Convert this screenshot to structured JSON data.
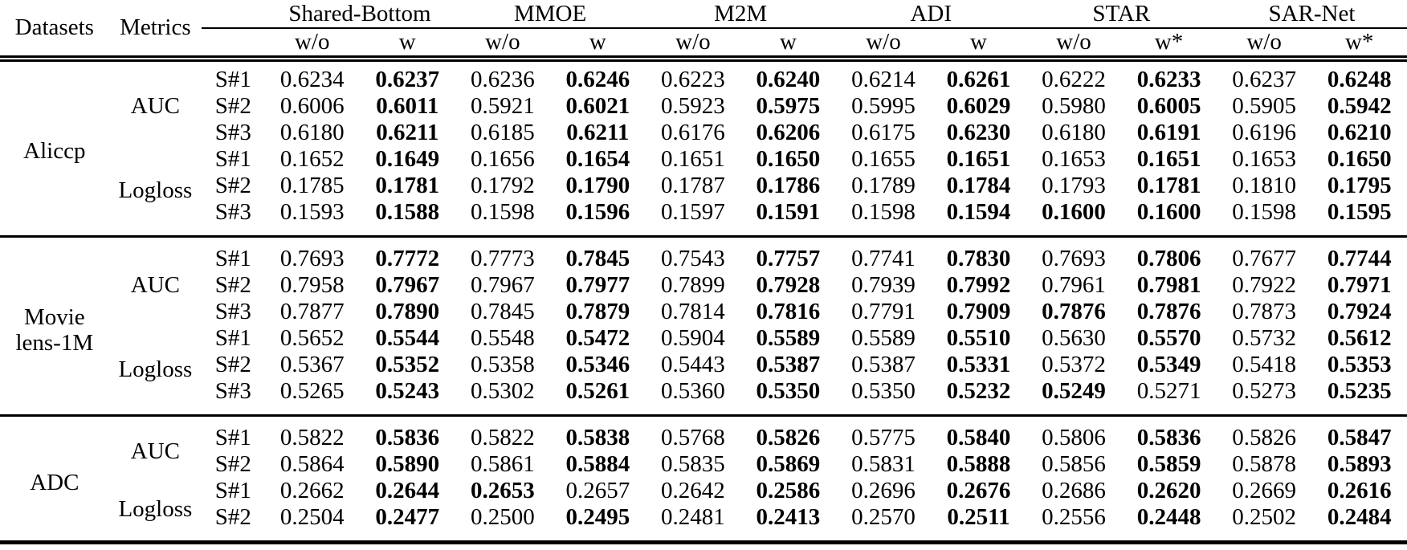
{
  "table": {
    "header": {
      "datasets_label": "Datasets",
      "metrics_label": "Metrics",
      "methods": [
        {
          "name": "Shared-Bottom",
          "cols": [
            "w/o",
            "w"
          ]
        },
        {
          "name": "MMOE",
          "cols": [
            "w/o",
            "w"
          ]
        },
        {
          "name": "M2M",
          "cols": [
            "w/o",
            "w"
          ]
        },
        {
          "name": "ADI",
          "cols": [
            "w/o",
            "w"
          ]
        },
        {
          "name": "STAR",
          "cols": [
            "w/o",
            "w*"
          ]
        },
        {
          "name": "SAR-Net",
          "cols": [
            "w/o",
            "w*"
          ]
        }
      ]
    },
    "sections": [
      {
        "dataset": "Aliccp",
        "dataset_lines": [
          "Aliccp"
        ],
        "groups": [
          {
            "metric": "AUC",
            "rows": [
              {
                "scenario": "S#1",
                "values": [
                  "0.6234",
                  "0.6237",
                  "0.6236",
                  "0.6246",
                  "0.6223",
                  "0.6240",
                  "0.6214",
                  "0.6261",
                  "0.6222",
                  "0.6233",
                  "0.6237",
                  "0.6248"
                ],
                "bold": [
                  0,
                  1,
                  0,
                  1,
                  0,
                  1,
                  0,
                  1,
                  0,
                  1,
                  0,
                  1
                ]
              },
              {
                "scenario": "S#2",
                "values": [
                  "0.6006",
                  "0.6011",
                  "0.5921",
                  "0.6021",
                  "0.5923",
                  "0.5975",
                  "0.5995",
                  "0.6029",
                  "0.5980",
                  "0.6005",
                  "0.5905",
                  "0.5942"
                ],
                "bold": [
                  0,
                  1,
                  0,
                  1,
                  0,
                  1,
                  0,
                  1,
                  0,
                  1,
                  0,
                  1
                ]
              },
              {
                "scenario": "S#3",
                "values": [
                  "0.6180",
                  "0.6211",
                  "0.6185",
                  "0.6211",
                  "0.6176",
                  "0.6206",
                  "0.6175",
                  "0.6230",
                  "0.6180",
                  "0.6191",
                  "0.6196",
                  "0.6210"
                ],
                "bold": [
                  0,
                  1,
                  0,
                  1,
                  0,
                  1,
                  0,
                  1,
                  0,
                  1,
                  0,
                  1
                ]
              }
            ]
          },
          {
            "metric": "Logloss",
            "rows": [
              {
                "scenario": "S#1",
                "values": [
                  "0.1652",
                  "0.1649",
                  "0.1656",
                  "0.1654",
                  "0.1651",
                  "0.1650",
                  "0.1655",
                  "0.1651",
                  "0.1653",
                  "0.1651",
                  "0.1653",
                  "0.1650"
                ],
                "bold": [
                  0,
                  1,
                  0,
                  1,
                  0,
                  1,
                  0,
                  1,
                  0,
                  1,
                  0,
                  1
                ]
              },
              {
                "scenario": "S#2",
                "values": [
                  "0.1785",
                  "0.1781",
                  "0.1792",
                  "0.1790",
                  "0.1787",
                  "0.1786",
                  "0.1789",
                  "0.1784",
                  "0.1793",
                  "0.1781",
                  "0.1810",
                  "0.1795"
                ],
                "bold": [
                  0,
                  1,
                  0,
                  1,
                  0,
                  1,
                  0,
                  1,
                  0,
                  1,
                  0,
                  1
                ]
              },
              {
                "scenario": "S#3",
                "values": [
                  "0.1593",
                  "0.1588",
                  "0.1598",
                  "0.1596",
                  "0.1597",
                  "0.1591",
                  "0.1598",
                  "0.1594",
                  "0.1600",
                  "0.1600",
                  "0.1598",
                  "0.1595"
                ],
                "bold": [
                  0,
                  1,
                  0,
                  1,
                  0,
                  1,
                  0,
                  1,
                  1,
                  1,
                  0,
                  1
                ]
              }
            ]
          }
        ]
      },
      {
        "dataset": "Movielens-1M",
        "dataset_lines": [
          "Movie",
          "lens-1M"
        ],
        "groups": [
          {
            "metric": "AUC",
            "rows": [
              {
                "scenario": "S#1",
                "values": [
                  "0.7693",
                  "0.7772",
                  "0.7773",
                  "0.7845",
                  "0.7543",
                  "0.7757",
                  "0.7741",
                  "0.7830",
                  "0.7693",
                  "0.7806",
                  "0.7677",
                  "0.7744"
                ],
                "bold": [
                  0,
                  1,
                  0,
                  1,
                  0,
                  1,
                  0,
                  1,
                  0,
                  1,
                  0,
                  1
                ]
              },
              {
                "scenario": "S#2",
                "values": [
                  "0.7958",
                  "0.7967",
                  "0.7967",
                  "0.7977",
                  "0.7899",
                  "0.7928",
                  "0.7939",
                  "0.7992",
                  "0.7961",
                  "0.7981",
                  "0.7922",
                  "0.7971"
                ],
                "bold": [
                  0,
                  1,
                  0,
                  1,
                  0,
                  1,
                  0,
                  1,
                  0,
                  1,
                  0,
                  1
                ]
              },
              {
                "scenario": "S#3",
                "values": [
                  "0.7877",
                  "0.7890",
                  "0.7845",
                  "0.7879",
                  "0.7814",
                  "0.7816",
                  "0.7791",
                  "0.7909",
                  "0.7876",
                  "0.7876",
                  "0.7873",
                  "0.7924"
                ],
                "bold": [
                  0,
                  1,
                  0,
                  1,
                  0,
                  1,
                  0,
                  1,
                  1,
                  1,
                  0,
                  1
                ]
              }
            ]
          },
          {
            "metric": "Logloss",
            "rows": [
              {
                "scenario": "S#1",
                "values": [
                  "0.5652",
                  "0.5544",
                  "0.5548",
                  "0.5472",
                  "0.5904",
                  "0.5589",
                  "0.5589",
                  "0.5510",
                  "0.5630",
                  "0.5570",
                  "0.5732",
                  "0.5612"
                ],
                "bold": [
                  0,
                  1,
                  0,
                  1,
                  0,
                  1,
                  0,
                  1,
                  0,
                  1,
                  0,
                  1
                ]
              },
              {
                "scenario": "S#2",
                "values": [
                  "0.5367",
                  "0.5352",
                  "0.5358",
                  "0.5346",
                  "0.5443",
                  "0.5387",
                  "0.5387",
                  "0.5331",
                  "0.5372",
                  "0.5349",
                  "0.5418",
                  "0.5353"
                ],
                "bold": [
                  0,
                  1,
                  0,
                  1,
                  0,
                  1,
                  0,
                  1,
                  0,
                  1,
                  0,
                  1
                ]
              },
              {
                "scenario": "S#3",
                "values": [
                  "0.5265",
                  "0.5243",
                  "0.5302",
                  "0.5261",
                  "0.5360",
                  "0.5350",
                  "0.5350",
                  "0.5232",
                  "0.5249",
                  "0.5271",
                  "0.5273",
                  "0.5235"
                ],
                "bold": [
                  0,
                  1,
                  0,
                  1,
                  0,
                  1,
                  0,
                  1,
                  1,
                  0,
                  0,
                  1
                ]
              }
            ]
          }
        ]
      },
      {
        "dataset": "ADC",
        "dataset_lines": [
          "ADC"
        ],
        "groups": [
          {
            "metric": "AUC",
            "rows": [
              {
                "scenario": "S#1",
                "values": [
                  "0.5822",
                  "0.5836",
                  "0.5822",
                  "0.5838",
                  "0.5768",
                  "0.5826",
                  "0.5775",
                  "0.5840",
                  "0.5806",
                  "0.5836",
                  "0.5826",
                  "0.5847"
                ],
                "bold": [
                  0,
                  1,
                  0,
                  1,
                  0,
                  1,
                  0,
                  1,
                  0,
                  1,
                  0,
                  1
                ]
              },
              {
                "scenario": "S#2",
                "values": [
                  "0.5864",
                  "0.5890",
                  "0.5861",
                  "0.5884",
                  "0.5835",
                  "0.5869",
                  "0.5831",
                  "0.5888",
                  "0.5856",
                  "0.5859",
                  "0.5878",
                  "0.5893"
                ],
                "bold": [
                  0,
                  1,
                  0,
                  1,
                  0,
                  1,
                  0,
                  1,
                  0,
                  1,
                  0,
                  1
                ]
              }
            ]
          },
          {
            "metric": "Logloss",
            "rows": [
              {
                "scenario": "S#1",
                "values": [
                  "0.2662",
                  "0.2644",
                  "0.2653",
                  "0.2657",
                  "0.2642",
                  "0.2586",
                  "0.2696",
                  "0.2676",
                  "0.2686",
                  "0.2620",
                  "0.2669",
                  "0.2616"
                ],
                "bold": [
                  0,
                  1,
                  1,
                  0,
                  0,
                  1,
                  0,
                  1,
                  0,
                  1,
                  0,
                  1
                ]
              },
              {
                "scenario": "S#2",
                "values": [
                  "0.2504",
                  "0.2477",
                  "0.2500",
                  "0.2495",
                  "0.2481",
                  "0.2413",
                  "0.2570",
                  "0.2511",
                  "0.2556",
                  "0.2448",
                  "0.2502",
                  "0.2484"
                ],
                "bold": [
                  0,
                  1,
                  0,
                  1,
                  0,
                  1,
                  0,
                  1,
                  0,
                  1,
                  0,
                  1
                ]
              }
            ]
          }
        ]
      }
    ]
  }
}
